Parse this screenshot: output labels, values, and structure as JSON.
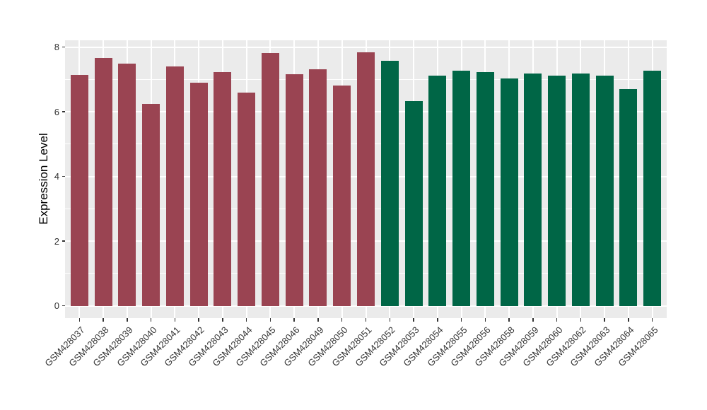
{
  "chart_data": {
    "type": "bar",
    "title": "",
    "xlabel": "",
    "ylabel": "Expression Level",
    "categories": [
      "GSM428037",
      "GSM428038",
      "GSM428039",
      "GSM428040",
      "GSM428041",
      "GSM428042",
      "GSM428043",
      "GSM428044",
      "GSM428045",
      "GSM428046",
      "GSM428049",
      "GSM428050",
      "GSM428051",
      "GSM428052",
      "GSM428053",
      "GSM428054",
      "GSM428055",
      "GSM428056",
      "GSM428058",
      "GSM428059",
      "GSM428060",
      "GSM428062",
      "GSM428063",
      "GSM428064",
      "GSM428065"
    ],
    "values": [
      7.13,
      7.67,
      7.49,
      6.25,
      7.4,
      6.9,
      7.23,
      6.58,
      7.82,
      7.16,
      7.31,
      6.8,
      7.84,
      7.58,
      6.33,
      7.11,
      7.27,
      7.23,
      7.02,
      7.19,
      7.11,
      7.19,
      7.12,
      6.7,
      7.26
    ],
    "bar_colors": [
      "#9A4452",
      "#9A4452",
      "#9A4452",
      "#9A4452",
      "#9A4452",
      "#9A4452",
      "#9A4452",
      "#9A4452",
      "#9A4452",
      "#9A4452",
      "#9A4452",
      "#9A4452",
      "#9A4452",
      "#006646",
      "#006646",
      "#006646",
      "#006646",
      "#006646",
      "#006646",
      "#006646",
      "#006646",
      "#006646",
      "#006646",
      "#006646",
      "#006646"
    ],
    "group_colors": {
      "left_group": "#9A4452",
      "right_group": "#006646"
    },
    "yticks": [
      0,
      2,
      4,
      6,
      8
    ],
    "yticks_minor": [
      1,
      3,
      5,
      7
    ],
    "ylim": [
      0,
      8.23
    ],
    "grid": "on",
    "legend_position": "none",
    "panel_background": "#EBEBEB",
    "gridline_color": "#FFFFFF"
  }
}
